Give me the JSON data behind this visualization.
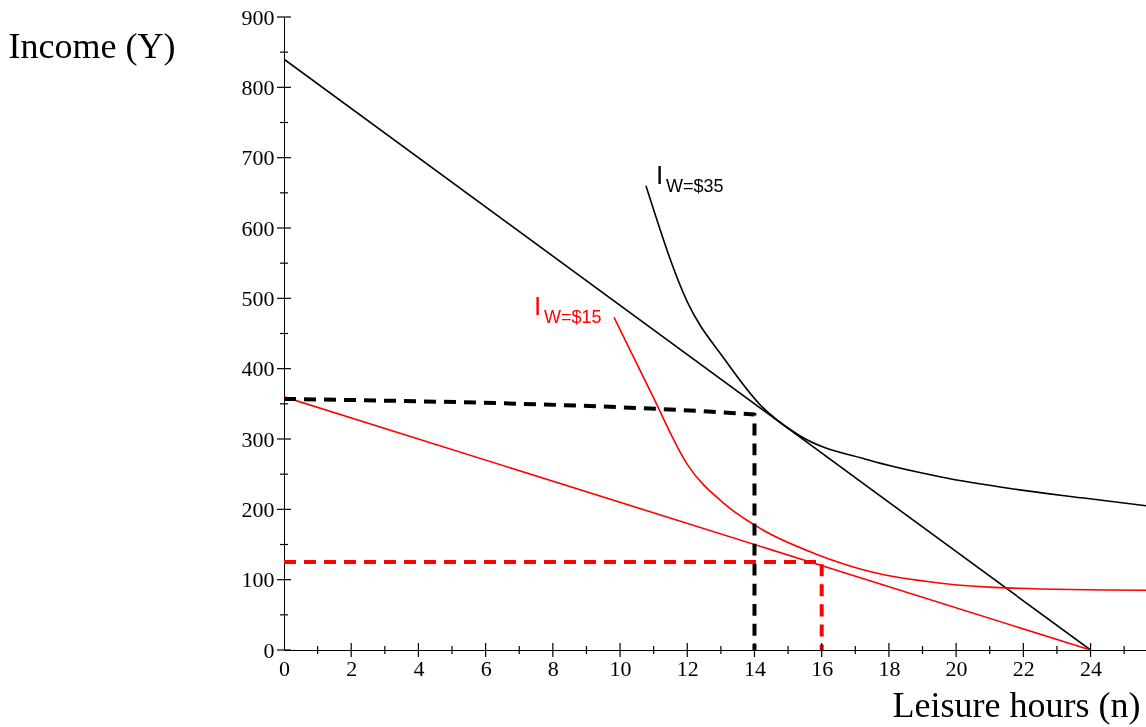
{
  "chart_data": {
    "type": "line",
    "xlabel": "Leisure hours (n)",
    "ylabel": "Income (Y)",
    "xlim": [
      0,
      25.65
    ],
    "ylim": [
      0,
      900
    ],
    "xticks": [
      0,
      {
        "value": 1,
        "label": null
      },
      2,
      {
        "value": 3,
        "label": null
      },
      4,
      {
        "value": 5,
        "label": null
      },
      6,
      {
        "value": 7,
        "label": null
      },
      8,
      {
        "value": 9,
        "label": null
      },
      10,
      {
        "value": 11,
        "label": null
      },
      12,
      {
        "value": 13,
        "label": null
      },
      14,
      {
        "value": 15,
        "label": null
      },
      16,
      {
        "value": 17,
        "label": null
      },
      18,
      {
        "value": 19,
        "label": null
      },
      20,
      {
        "value": 21,
        "label": null
      },
      22,
      {
        "value": 23,
        "label": null
      },
      24,
      {
        "value": 25,
        "label": null
      }
    ],
    "yticks": [
      0,
      {
        "value": 50,
        "label": null
      },
      100,
      {
        "value": 150,
        "label": null
      },
      200,
      {
        "value": 250,
        "label": null
      },
      300,
      {
        "value": 350,
        "label": null
      },
      400,
      {
        "value": 450,
        "label": null
      },
      500,
      {
        "value": 550,
        "label": null
      },
      600,
      {
        "value": 650,
        "label": null
      },
      700,
      {
        "value": 750,
        "label": null
      },
      800,
      {
        "value": 850,
        "label": null
      },
      900
    ],
    "grid": false,
    "marker": "none",
    "series": [
      {
        "color": "#000000",
        "line_style": "solid",
        "x": [
          0,
          24
        ],
        "values": [
          840,
          0
        ]
      },
      {
        "color": "#ff0000",
        "line_style": "solid",
        "x": [
          0,
          24
        ],
        "values": [
          360,
          0
        ]
      },
      {
        "color": "#000000",
        "line_style": "solid",
        "x": [
          10.77,
          12.0,
          13.1,
          14.2,
          15.3,
          17.4,
          19.55,
          21.7,
          23.8,
          25.65
        ],
        "values": [
          660,
          495,
          414,
          347,
          306,
          270,
          246,
          229,
          216,
          205
        ]
      },
      {
        "color": "#ff0000",
        "line_style": "solid",
        "x": [
          9.82,
          10.95,
          12.0,
          13.1,
          14.2,
          15.8,
          17.4,
          19.55,
          21.7,
          25.65
        ],
        "values": [
          473,
          363,
          264,
          208,
          172,
          137,
          112,
          95,
          88,
          85
        ]
      },
      {
        "color": "#000000",
        "line_style": "dashed",
        "x": [
          0,
          14,
          14
        ],
        "values": [
          357,
          335,
          0
        ]
      },
      {
        "color": "#ff0000",
        "line_style": "dashed",
        "x": [
          0,
          16,
          16
        ],
        "values": [
          125,
          125,
          0
        ]
      }
    ],
    "annotations": [
      "I$_{W=$35}$",
      "I$_{W=$15}$"
    ]
  }
}
